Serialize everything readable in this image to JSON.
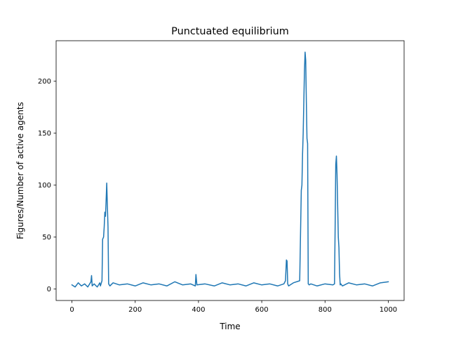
{
  "chart_data": {
    "type": "line",
    "title": "Punctuated equilibrium",
    "xlabel": "Time",
    "ylabel": "Figures/Number of active agents",
    "xlim": [
      -50,
      1050
    ],
    "ylim": [
      -11,
      239
    ],
    "xticks": [
      0,
      200,
      400,
      600,
      800,
      1000
    ],
    "yticks": [
      0,
      50,
      100,
      150,
      200
    ],
    "grid": false,
    "legend": "none",
    "series": [
      {
        "color": "#1f77b4",
        "x": [
          0,
          10,
          20,
          30,
          40,
          50,
          60,
          62,
          64,
          70,
          80,
          88,
          90,
          95,
          97,
          100,
          102,
          104,
          106,
          108,
          110,
          112,
          114,
          116,
          120,
          130,
          150,
          175,
          200,
          225,
          250,
          275,
          300,
          325,
          350,
          375,
          390,
          392,
          395,
          420,
          450,
          475,
          500,
          525,
          550,
          575,
          600,
          625,
          650,
          670,
          675,
          678,
          680,
          682,
          685,
          700,
          720,
          725,
          727,
          729,
          731,
          733,
          735,
          737,
          739,
          741,
          743,
          745,
          747,
          750,
          755,
          775,
          800,
          825,
          830,
          832,
          834,
          836,
          838,
          840,
          842,
          844,
          846,
          848,
          850,
          855,
          875,
          900,
          925,
          950,
          975,
          1000
        ],
        "y": [
          4,
          2,
          6,
          3,
          5,
          2,
          7,
          13,
          3,
          5,
          2,
          6,
          3,
          8,
          48,
          50,
          60,
          74,
          70,
          85,
          102,
          80,
          60,
          5,
          3,
          6,
          4,
          5,
          3,
          6,
          4,
          5,
          3,
          7,
          4,
          5,
          3,
          14,
          4,
          5,
          3,
          6,
          4,
          5,
          3,
          6,
          4,
          5,
          3,
          5,
          8,
          28,
          27,
          5,
          3,
          6,
          8,
          95,
          100,
          130,
          150,
          180,
          210,
          228,
          220,
          180,
          145,
          140,
          5,
          4,
          5,
          3,
          5,
          4,
          5,
          60,
          120,
          128,
          110,
          80,
          50,
          40,
          15,
          4,
          5,
          3,
          6,
          4,
          5,
          3,
          6,
          7
        ]
      }
    ]
  }
}
